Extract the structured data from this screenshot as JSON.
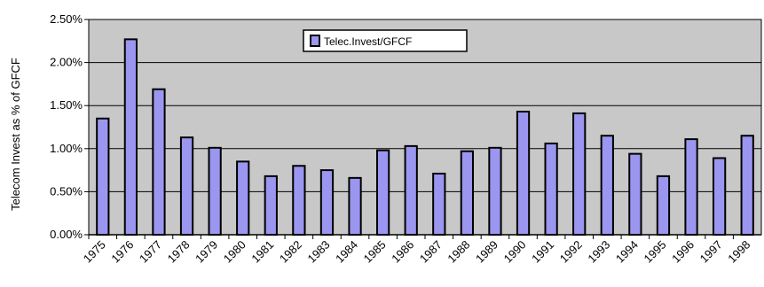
{
  "chart_data": {
    "type": "bar",
    "title": "",
    "xlabel": "",
    "ylabel": "Telecom Invest as % of GFCF",
    "categories": [
      "1975",
      "1976",
      "1977",
      "1978",
      "1979",
      "1980",
      "1981",
      "1982",
      "1983",
      "1984",
      "1985",
      "1986",
      "1987",
      "1988",
      "1989",
      "1990",
      "1991",
      "1992",
      "1993",
      "1994",
      "1995",
      "1996",
      "1997",
      "1998"
    ],
    "series": [
      {
        "name": "Telec.Invest/GFCF",
        "values": [
          1.35,
          2.27,
          1.69,
          1.13,
          1.01,
          0.85,
          0.68,
          0.8,
          0.75,
          0.66,
          0.98,
          1.03,
          0.71,
          0.97,
          1.01,
          1.43,
          1.06,
          1.41,
          1.15,
          0.94,
          0.68,
          1.11,
          0.89,
          1.15
        ]
      }
    ],
    "ylim": [
      0,
      2.5
    ],
    "yticks": [
      "0.00%",
      "0.50%",
      "1.00%",
      "1.50%",
      "2.00%",
      "2.50%"
    ],
    "ytick_values": [
      0,
      0.5,
      1.0,
      1.5,
      2.0,
      2.5
    ],
    "grid": true,
    "legend": "top-center",
    "colors": {
      "bar_fill": "#9b96ef",
      "bar_stroke": "#000000",
      "plot_bg": "#c8c8c8"
    }
  }
}
